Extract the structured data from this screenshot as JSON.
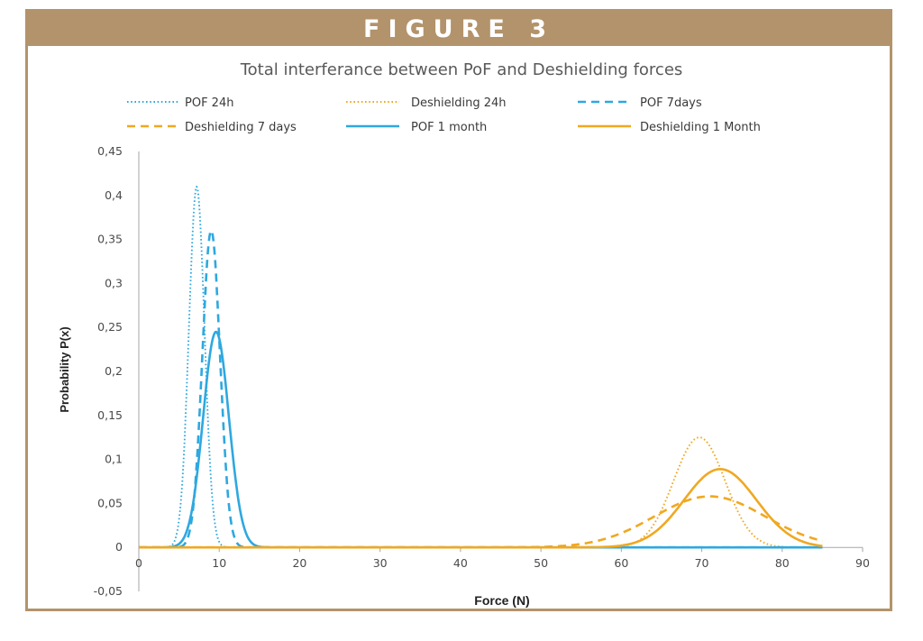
{
  "figure_label": "FIGURE 3",
  "colors": {
    "frame": "#b3936b",
    "blue": "#2ea8df",
    "orange": "#f0a821",
    "axis": "#a6a6a6"
  },
  "chart_data": {
    "type": "line",
    "title": "Total interferance between PoF and Deshielding forces",
    "xlabel": "Force (N)",
    "ylabel": "Probability P(x)",
    "xlim": [
      0,
      90
    ],
    "ylim": [
      -0.05,
      0.45
    ],
    "x_ticks": [
      "0",
      "10",
      "20",
      "30",
      "40",
      "50",
      "60",
      "70",
      "80",
      "90"
    ],
    "y_ticks": [
      "-0,05",
      "0",
      "0,05",
      "0,1",
      "0,15",
      "0,2",
      "0,25",
      "0,3",
      "0,35",
      "0,4",
      "0,45"
    ],
    "legend_position": "top",
    "series": [
      {
        "name": "POF 24h",
        "color": "#2ea8df",
        "style": "dotted",
        "distribution": {
          "mean": 7.2,
          "sd": 0.97,
          "peak": 0.41
        },
        "x_range": [
          0,
          85
        ]
      },
      {
        "name": "Deshielding 24h",
        "color": "#f0a821",
        "style": "dotted",
        "distribution": {
          "mean": 69.7,
          "sd": 3.2,
          "peak": 0.125
        },
        "x_range": [
          0,
          85
        ]
      },
      {
        "name": "POF 7days",
        "color": "#2ea8df",
        "style": "dashed",
        "distribution": {
          "mean": 9.0,
          "sd": 1.1,
          "peak": 0.36
        },
        "x_range": [
          0,
          85
        ]
      },
      {
        "name": "Deshielding 7 days",
        "color": "#f0a821",
        "style": "dashed",
        "distribution": {
          "mean": 71.0,
          "sd": 6.9,
          "peak": 0.058
        },
        "x_range": [
          0,
          85
        ]
      },
      {
        "name": "POF 1 month",
        "color": "#2ea8df",
        "style": "solid",
        "distribution": {
          "mean": 9.6,
          "sd": 1.6,
          "peak": 0.245
        },
        "x_range": [
          0,
          85
        ]
      },
      {
        "name": "Deshielding 1 Month",
        "color": "#f0a821",
        "style": "solid",
        "distribution": {
          "mean": 72.3,
          "sd": 4.5,
          "peak": 0.089
        },
        "x_range": [
          0,
          85
        ]
      }
    ]
  }
}
